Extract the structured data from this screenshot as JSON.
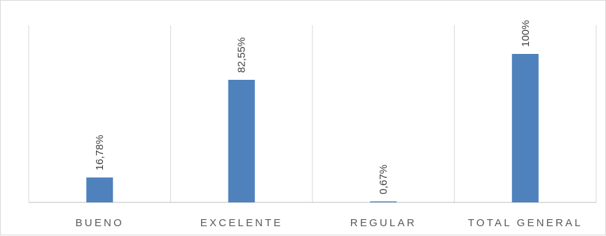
{
  "chart_data": {
    "type": "bar",
    "categories": [
      "BUENO",
      "EXCELENTE",
      "REGULAR",
      "TOTAL GENERAL"
    ],
    "values": [
      16.78,
      82.55,
      0.67,
      100
    ],
    "data_labels": [
      "16,78%",
      "82,55%",
      "0,67%",
      "100%"
    ],
    "title": "",
    "xlabel": "",
    "ylabel": "",
    "ylim": [
      0,
      100
    ],
    "grid": "vertical category separators",
    "legend": "none",
    "colors": {
      "bar": "#4f81bd",
      "grid": "#d9d9d9",
      "axis": "#bfbfbf",
      "text": "#595959"
    }
  }
}
